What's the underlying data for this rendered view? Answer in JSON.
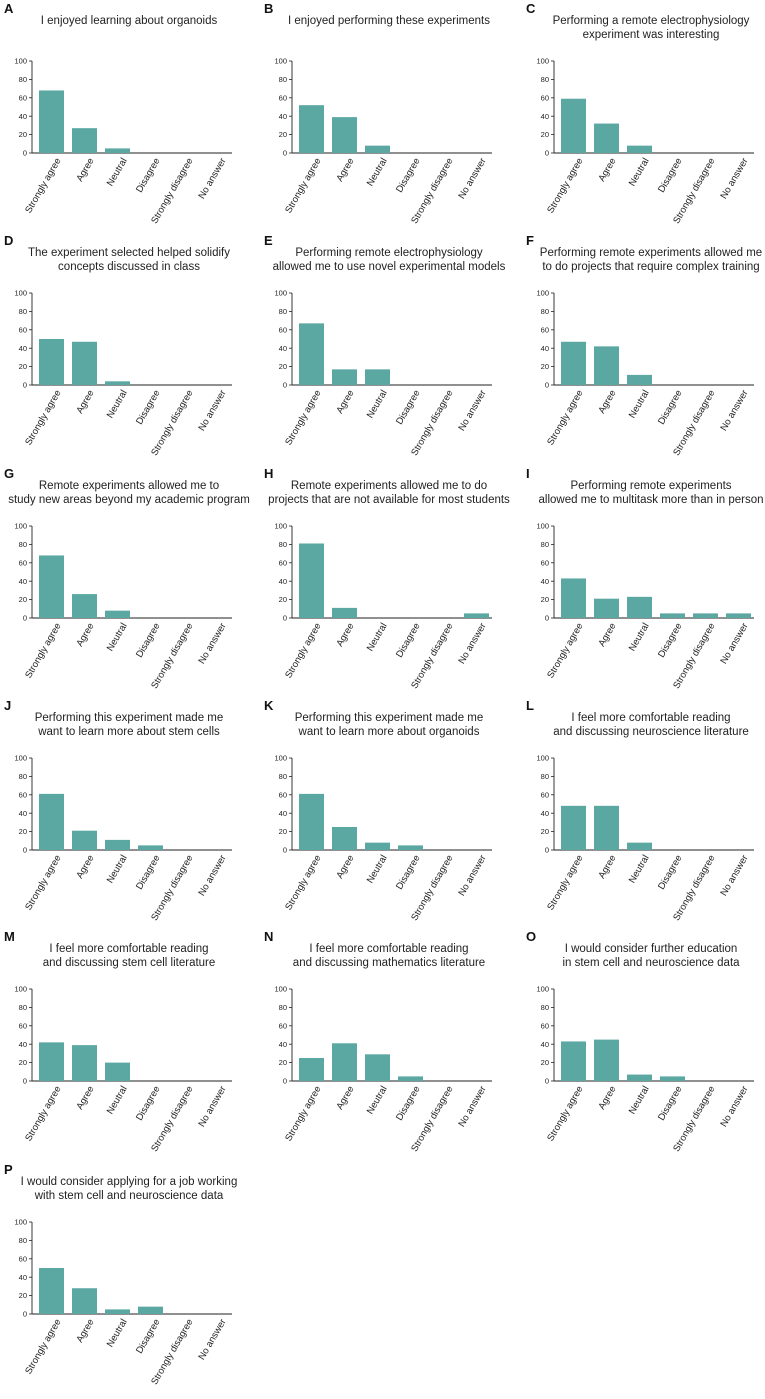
{
  "chart_data": [
    {
      "type": "bar",
      "letter": "A",
      "title": [
        "I enjoyed learning about organoids"
      ],
      "categories": [
        "Strongly agree",
        "Agree",
        "Neutral",
        "Disagree",
        "Strongly disagree",
        "No answer"
      ],
      "values": [
        68,
        27,
        5,
        0,
        0,
        0
      ],
      "ylim": [
        0,
        100
      ],
      "yticks": [
        "0",
        "20",
        "40",
        "60",
        "80",
        "100"
      ],
      "grid": false
    },
    {
      "type": "bar",
      "letter": "B",
      "title": [
        "I enjoyed performing these experiments"
      ],
      "categories": [
        "Strongly agree",
        "Agree",
        "Neutral",
        "Disagree",
        "Strongly disagree",
        "No answer"
      ],
      "values": [
        52,
        39,
        8,
        0,
        0,
        0
      ],
      "ylim": [
        0,
        100
      ],
      "yticks": [
        "0",
        "20",
        "40",
        "60",
        "80",
        "100"
      ],
      "grid": false
    },
    {
      "type": "bar",
      "letter": "C",
      "title": [
        "Performing a remote electrophysiology",
        "experiment was interesting"
      ],
      "categories": [
        "Strongly agree",
        "Agree",
        "Neutral",
        "Disagree",
        "Strongly disagree",
        "No answer"
      ],
      "values": [
        59,
        32,
        8,
        0,
        0,
        0
      ],
      "ylim": [
        0,
        100
      ],
      "yticks": [
        "0",
        "20",
        "40",
        "60",
        "80",
        "100"
      ],
      "grid": false
    },
    {
      "type": "bar",
      "letter": "D",
      "title": [
        "The experiment selected helped solidify",
        "concepts discussed in class"
      ],
      "categories": [
        "Strongly agree",
        "Agree",
        "Neutral",
        "Disagree",
        "Strongly disagree",
        "No answer"
      ],
      "values": [
        50,
        47,
        4,
        0,
        0,
        0
      ],
      "ylim": [
        0,
        100
      ],
      "yticks": [
        "0",
        "20",
        "40",
        "60",
        "80",
        "100"
      ],
      "grid": false
    },
    {
      "type": "bar",
      "letter": "E",
      "title": [
        "Performing remote electrophysiology",
        "allowed me to use novel experimental models"
      ],
      "categories": [
        "Strongly agree",
        "Agree",
        "Neutral",
        "Disagree",
        "Strongly disagree",
        "No answer"
      ],
      "values": [
        67,
        17,
        17,
        0,
        0,
        0
      ],
      "ylim": [
        0,
        100
      ],
      "yticks": [
        "0",
        "20",
        "40",
        "60",
        "80",
        "100"
      ],
      "grid": false
    },
    {
      "type": "bar",
      "letter": "F",
      "title": [
        "Performing remote experiments allowed me",
        "to do projects that require complex training"
      ],
      "categories": [
        "Strongly agree",
        "Agree",
        "Neutral",
        "Disagree",
        "Strongly disagree",
        "No answer"
      ],
      "values": [
        47,
        42,
        11,
        0,
        0,
        0
      ],
      "ylim": [
        0,
        100
      ],
      "yticks": [
        "0",
        "20",
        "40",
        "60",
        "80",
        "100"
      ],
      "grid": false
    },
    {
      "type": "bar",
      "letter": "G",
      "title": [
        "Remote experiments allowed me to",
        "study new areas beyond my academic program"
      ],
      "categories": [
        "Strongly agree",
        "Agree",
        "Neutral",
        "Disagree",
        "Strongly disagree",
        "No answer"
      ],
      "values": [
        68,
        26,
        8,
        0,
        0,
        0
      ],
      "ylim": [
        0,
        100
      ],
      "yticks": [
        "0",
        "20",
        "40",
        "60",
        "80",
        "100"
      ],
      "grid": false
    },
    {
      "type": "bar",
      "letter": "H",
      "title": [
        "Remote experiments allowed me to do",
        "projects that are not available for most students"
      ],
      "categories": [
        "Strongly agree",
        "Agree",
        "Neutral",
        "Disagree",
        "Strongly disagree",
        "No answer"
      ],
      "values": [
        81,
        11,
        0,
        0,
        0,
        5
      ],
      "ylim": [
        0,
        100
      ],
      "yticks": [
        "0",
        "20",
        "40",
        "60",
        "80",
        "100"
      ],
      "grid": false
    },
    {
      "type": "bar",
      "letter": "I",
      "title": [
        "Performing remote experiments",
        "allowed me to multitask more than in person"
      ],
      "categories": [
        "Strongly agree",
        "Agree",
        "Neutral",
        "Disagree",
        "Strongly disagree",
        "No answer"
      ],
      "values": [
        43,
        21,
        23,
        5,
        5,
        5
      ],
      "ylim": [
        0,
        100
      ],
      "yticks": [
        "0",
        "20",
        "40",
        "60",
        "80",
        "100"
      ],
      "grid": false
    },
    {
      "type": "bar",
      "letter": "J",
      "title": [
        "Performing this experiment made me",
        "want to learn more about stem cells"
      ],
      "categories": [
        "Strongly agree",
        "Agree",
        "Neutral",
        "Disagree",
        "Strongly disagree",
        "No answer"
      ],
      "values": [
        61,
        21,
        11,
        5,
        0,
        0
      ],
      "ylim": [
        0,
        100
      ],
      "yticks": [
        "0",
        "20",
        "40",
        "60",
        "80",
        "100"
      ],
      "grid": false
    },
    {
      "type": "bar",
      "letter": "K",
      "title": [
        "Performing this experiment made me",
        "want to learn more about organoids"
      ],
      "categories": [
        "Strongly agree",
        "Agree",
        "Neutral",
        "Disagree",
        "Strongly disagree",
        "No answer"
      ],
      "values": [
        61,
        25,
        8,
        5,
        0,
        0
      ],
      "ylim": [
        0,
        100
      ],
      "yticks": [
        "0",
        "20",
        "40",
        "60",
        "80",
        "100"
      ],
      "grid": false
    },
    {
      "type": "bar",
      "letter": "L",
      "title": [
        "I feel more comfortable reading",
        "and discussing neuroscience literature"
      ],
      "categories": [
        "Strongly agree",
        "Agree",
        "Neutral",
        "Disagree",
        "Strongly disagree",
        "No answer"
      ],
      "values": [
        48,
        48,
        8,
        0,
        0,
        0
      ],
      "ylim": [
        0,
        100
      ],
      "yticks": [
        "0",
        "20",
        "40",
        "60",
        "80",
        "100"
      ],
      "grid": false
    },
    {
      "type": "bar",
      "letter": "M",
      "title": [
        "I feel more comfortable reading",
        "and discussing stem cell literature"
      ],
      "categories": [
        "Strongly agree",
        "Agree",
        "Neutral",
        "Disagree",
        "Strongly disagree",
        "No answer"
      ],
      "values": [
        42,
        39,
        20,
        0,
        0,
        0
      ],
      "ylim": [
        0,
        100
      ],
      "yticks": [
        "0",
        "20",
        "40",
        "60",
        "80",
        "100"
      ],
      "grid": false
    },
    {
      "type": "bar",
      "letter": "N",
      "title": [
        "I feel more comfortable reading",
        "and discussing mathematics literature"
      ],
      "categories": [
        "Strongly agree",
        "Agree",
        "Neutral",
        "Disagree",
        "Strongly disagree",
        "No answer"
      ],
      "values": [
        25,
        41,
        29,
        5,
        0,
        0
      ],
      "ylim": [
        0,
        100
      ],
      "yticks": [
        "0",
        "20",
        "40",
        "60",
        "80",
        "100"
      ],
      "grid": false
    },
    {
      "type": "bar",
      "letter": "O",
      "title": [
        "I would consider further education",
        "in stem cell and neuroscience data"
      ],
      "categories": [
        "Strongly agree",
        "Agree",
        "Neutral",
        "Disagree",
        "Strongly disagree",
        "No answer"
      ],
      "values": [
        43,
        45,
        7,
        5,
        0,
        0
      ],
      "ylim": [
        0,
        100
      ],
      "yticks": [
        "0",
        "20",
        "40",
        "60",
        "80",
        "100"
      ],
      "grid": false
    },
    {
      "type": "bar",
      "letter": "P",
      "title": [
        "I would consider applying for a job working",
        "with stem cell and neuroscience data"
      ],
      "categories": [
        "Strongly agree",
        "Agree",
        "Neutral",
        "Disagree",
        "Strongly disagree",
        "No answer"
      ],
      "values": [
        50,
        28,
        5,
        8,
        0,
        0
      ],
      "ylim": [
        0,
        100
      ],
      "yticks": [
        "0",
        "20",
        "40",
        "60",
        "80",
        "100"
      ],
      "grid": false
    }
  ],
  "colors": {
    "bar": "#5ba8a2",
    "axis": "#222222"
  }
}
